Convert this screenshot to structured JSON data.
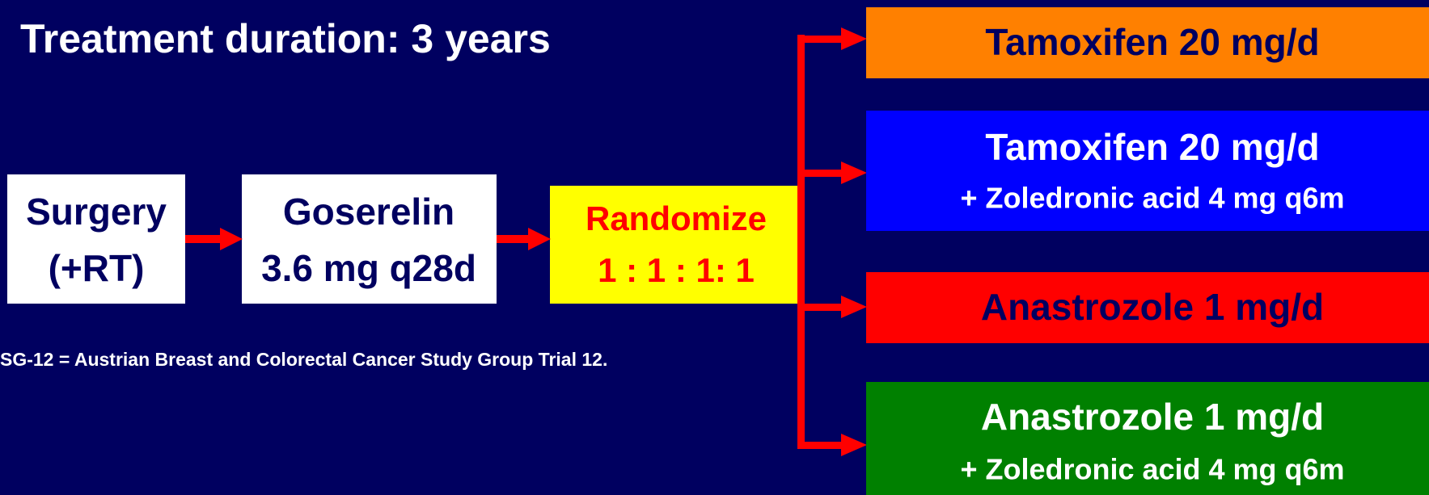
{
  "header": {
    "title": "Treatment duration: 3 years"
  },
  "flow": [
    {
      "lines": [
        "Surgery",
        "(+RT)"
      ]
    },
    {
      "lines": [
        "Goserelin",
        "3.6 mg q28d"
      ]
    },
    {
      "lines": [
        "Randomize",
        "1 : 1 : 1: 1"
      ]
    }
  ],
  "arms": [
    {
      "lines": [
        "Tamoxifen 20 mg/d"
      ]
    },
    {
      "lines": [
        "Tamoxifen 20 mg/d",
        "+ Zoledronic acid 4 mg q6m"
      ]
    },
    {
      "lines": [
        "Anastrozole 1 mg/d"
      ]
    },
    {
      "lines": [
        "Anastrozole 1 mg/d",
        "+ Zoledronic acid 4 mg q6m"
      ]
    }
  ],
  "footnote": "SG-12 = Austrian Breast and Colorectal Cancer Study Group Trial 12."
}
